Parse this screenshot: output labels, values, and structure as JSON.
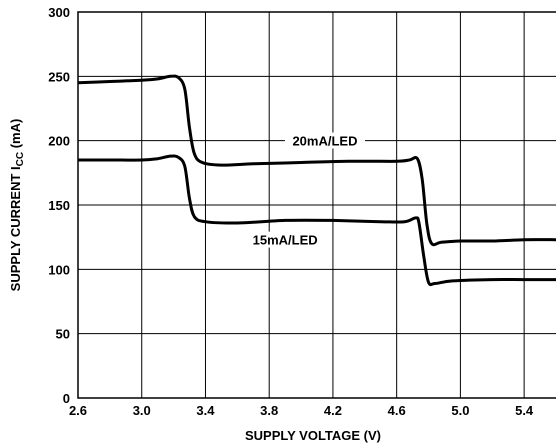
{
  "chart_data": {
    "type": "line",
    "xlabel": "SUPPLY VOLTAGE (V)",
    "ylabel_main": "SUPPLY CURRENT I",
    "ylabel_sub": "CC",
    "ylabel_unit": " (mA)",
    "xlim": [
      2.6,
      5.6
    ],
    "ylim": [
      0,
      300
    ],
    "x_ticks": [
      "2.6",
      "3.0",
      "3.4",
      "3.8",
      "4.2",
      "4.6",
      "5.0",
      "5.4"
    ],
    "y_ticks": [
      "0",
      "50",
      "100",
      "150",
      "200",
      "250",
      "300"
    ],
    "grid": true,
    "series": [
      {
        "name": "20mA/LED",
        "x": [
          2.6,
          2.8,
          3.0,
          3.1,
          3.18,
          3.23,
          3.27,
          3.3,
          3.33,
          3.38,
          3.5,
          3.7,
          4.0,
          4.3,
          4.6,
          4.68,
          4.73,
          4.76,
          4.79,
          4.82,
          4.88,
          5.0,
          5.2,
          5.4,
          5.6
        ],
        "values": [
          245,
          246,
          247,
          248,
          250,
          249,
          240,
          210,
          190,
          183,
          181,
          182,
          183,
          184,
          184,
          185,
          186,
          170,
          135,
          120,
          121,
          122,
          122,
          123,
          123
        ]
      },
      {
        "name": "15mA/LED",
        "x": [
          2.6,
          2.8,
          3.0,
          3.1,
          3.18,
          3.23,
          3.27,
          3.3,
          3.33,
          3.4,
          3.6,
          3.9,
          4.2,
          4.5,
          4.65,
          4.72,
          4.74,
          4.77,
          4.8,
          4.84,
          4.95,
          5.2,
          5.4,
          5.6
        ],
        "values": [
          185,
          185,
          185,
          186,
          188,
          187,
          180,
          155,
          141,
          137,
          136,
          138,
          138,
          137,
          137,
          140,
          136,
          110,
          90,
          89,
          91,
          92,
          92,
          92
        ]
      }
    ],
    "annotations": [
      {
        "text": "20mA/LED",
        "x": 4.15,
        "y": 197
      },
      {
        "text": "15mA/LED",
        "x": 3.9,
        "y": 120
      }
    ]
  }
}
